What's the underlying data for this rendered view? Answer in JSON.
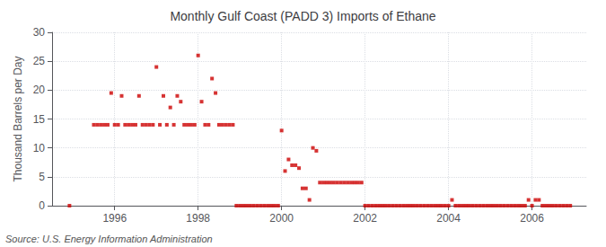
{
  "chart_data": {
    "type": "scatter",
    "title": "Monthly Gulf Coast (PADD 3) Imports of Ethane",
    "ylabel": "Thousand Barrels per Day",
    "annotations": [
      "Source: U.S. Energy Information Administration"
    ],
    "color": "#cc0000",
    "marker": "square",
    "grid": true,
    "xlim": [
      1994.5,
      2007.3
    ],
    "xticks": [
      1996,
      1998,
      2000,
      2002,
      2004,
      2006
    ],
    "ylim": [
      0,
      30
    ],
    "yticks": [
      0,
      5,
      10,
      15,
      20,
      25,
      30
    ],
    "x": [
      1994.917,
      1995.5,
      1995.583,
      1995.667,
      1995.75,
      1995.833,
      1995.917,
      1996.0,
      1996.083,
      1996.167,
      1996.25,
      1996.333,
      1996.417,
      1996.5,
      1996.583,
      1996.667,
      1996.75,
      1996.833,
      1996.917,
      1997.0,
      1997.083,
      1997.167,
      1997.25,
      1997.333,
      1997.417,
      1997.5,
      1997.583,
      1997.667,
      1997.75,
      1997.833,
      1997.917,
      1998.0,
      1998.083,
      1998.167,
      1998.25,
      1998.333,
      1998.417,
      1998.5,
      1998.583,
      1998.667,
      1998.75,
      1998.833,
      1998.917,
      1999.0,
      1999.083,
      1999.167,
      1999.25,
      1999.333,
      1999.417,
      1999.5,
      1999.583,
      1999.667,
      1999.75,
      1999.833,
      1999.917,
      2000.0,
      2000.083,
      2000.167,
      2000.25,
      2000.333,
      2000.417,
      2000.5,
      2000.583,
      2000.667,
      2000.75,
      2000.833,
      2000.917,
      2001.0,
      2001.083,
      2001.167,
      2001.25,
      2001.333,
      2001.417,
      2001.5,
      2001.583,
      2001.667,
      2001.75,
      2001.833,
      2001.917,
      2002.0,
      2002.083,
      2002.167,
      2002.25,
      2002.333,
      2002.417,
      2002.5,
      2002.583,
      2002.667,
      2002.75,
      2002.833,
      2002.917,
      2003.0,
      2003.083,
      2003.167,
      2003.25,
      2003.333,
      2003.417,
      2003.5,
      2003.583,
      2003.667,
      2003.75,
      2003.833,
      2003.917,
      2004.0,
      2004.083,
      2004.167,
      2004.25,
      2004.333,
      2004.417,
      2004.5,
      2004.583,
      2004.667,
      2004.75,
      2004.833,
      2004.917,
      2005.0,
      2005.083,
      2005.167,
      2005.25,
      2005.333,
      2005.417,
      2005.5,
      2005.583,
      2005.667,
      2005.75,
      2005.833,
      2005.917,
      2006.0,
      2006.083,
      2006.167,
      2006.25,
      2006.333,
      2006.417,
      2006.5,
      2006.583,
      2006.667,
      2006.75,
      2006.833,
      2006.917
    ],
    "values": [
      0,
      14,
      14,
      14,
      14,
      14,
      19.5,
      14,
      14,
      19,
      14,
      14,
      14,
      14,
      19,
      14,
      14,
      14,
      14,
      24,
      14,
      19,
      14,
      17,
      14,
      19,
      18,
      14,
      14,
      14,
      14,
      26,
      18,
      14,
      14,
      22,
      19.5,
      14,
      14,
      14,
      14,
      14,
      0,
      0,
      0,
      0,
      0,
      0,
      0,
      0,
      0,
      0,
      0,
      0,
      0,
      13,
      6,
      8,
      7,
      7,
      6.5,
      3,
      3,
      1,
      10,
      9.5,
      4,
      4,
      4,
      4,
      4,
      4,
      4,
      4,
      4,
      4,
      4,
      4,
      4,
      0,
      0,
      0,
      0,
      0,
      0,
      0,
      0,
      0,
      0,
      0,
      0,
      0,
      0,
      0,
      0,
      0,
      0,
      0,
      0,
      0,
      0,
      0,
      0,
      0,
      1,
      0,
      0,
      0,
      0,
      0,
      0,
      0,
      0,
      0,
      0,
      0,
      0,
      0,
      0,
      0,
      0,
      0,
      0,
      0,
      0,
      0,
      1,
      0,
      1,
      1,
      0,
      0,
      0,
      0,
      0,
      0,
      0,
      0,
      0
    ]
  }
}
